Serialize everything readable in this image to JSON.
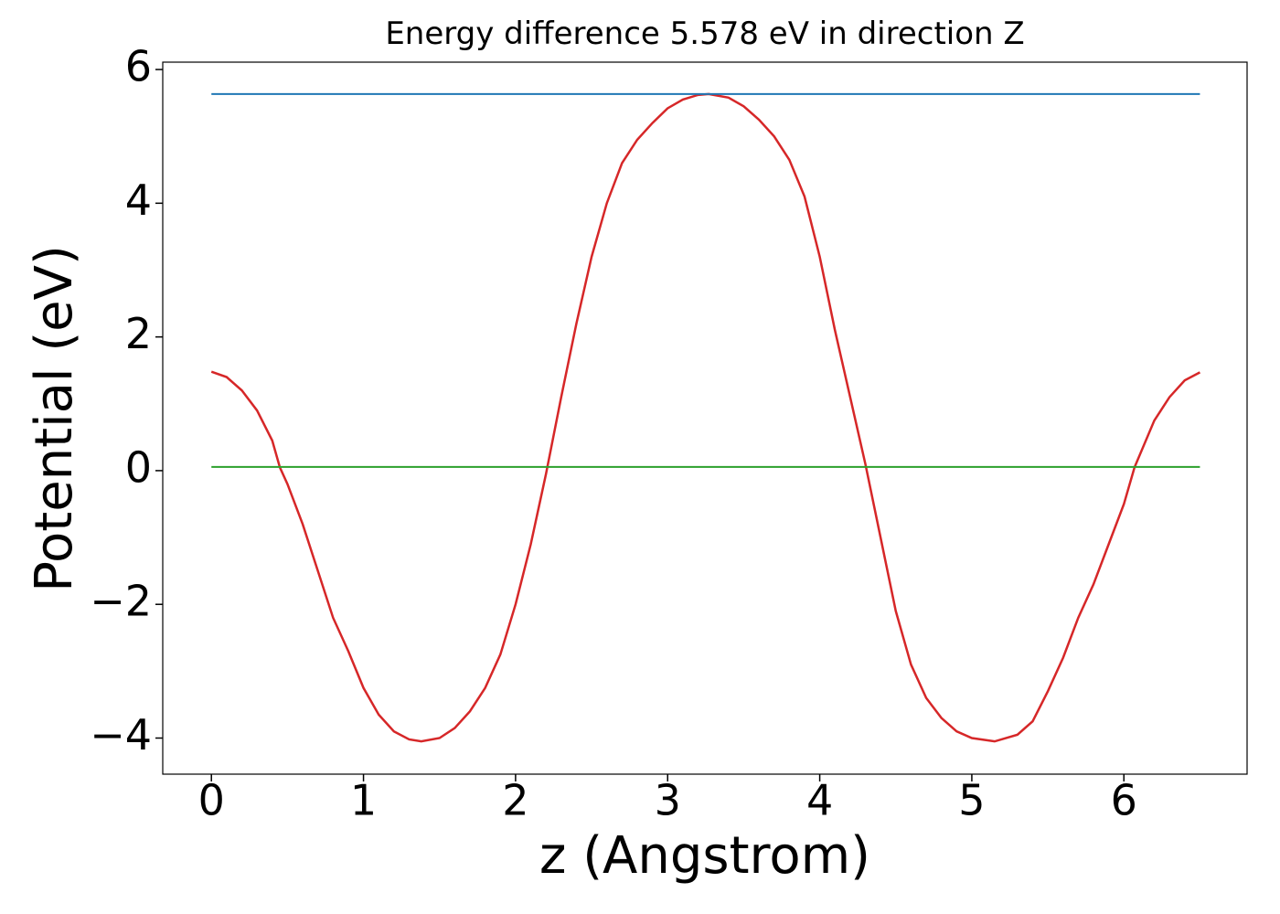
{
  "chart_data": {
    "type": "line",
    "title": "Energy difference 5.578 eV in direction Z",
    "x_label": "z (Angstrom)",
    "y_label": "Potential (eV)",
    "series": [
      {
        "color": "#d62728",
        "x": [
          0,
          0.1,
          0.2,
          0.3,
          0.4,
          0.45,
          0.5,
          0.6,
          0.7,
          0.8,
          0.9,
          1.0,
          1.1,
          1.2,
          1.3,
          1.38,
          1.5,
          1.6,
          1.7,
          1.8,
          1.9,
          2.0,
          2.1,
          2.2,
          2.3,
          2.4,
          2.5,
          2.6,
          2.7,
          2.8,
          2.9,
          3.0,
          3.1,
          3.2,
          3.27,
          3.4,
          3.5,
          3.6,
          3.7,
          3.8,
          3.9,
          4.0,
          4.1,
          4.2,
          4.3,
          4.4,
          4.5,
          4.6,
          4.7,
          4.8,
          4.9,
          5.0,
          5.15,
          5.3,
          5.4,
          5.5,
          5.6,
          5.7,
          5.8,
          5.9,
          6.0,
          6.07,
          6.2,
          6.3,
          6.4,
          6.5
        ],
        "values": [
          1.48,
          1.4,
          1.2,
          0.9,
          0.45,
          0.05,
          -0.2,
          -0.8,
          -1.5,
          -2.2,
          -2.7,
          -3.25,
          -3.65,
          -3.9,
          -4.02,
          -4.05,
          -4.0,
          -3.85,
          -3.6,
          -3.25,
          -2.75,
          -2.0,
          -1.1,
          -0.05,
          1.1,
          2.2,
          3.2,
          4.0,
          4.6,
          4.95,
          5.2,
          5.42,
          5.55,
          5.62,
          5.633,
          5.58,
          5.45,
          5.25,
          5.0,
          4.65,
          4.1,
          3.2,
          2.1,
          1.1,
          0.1,
          -1.0,
          -2.1,
          -2.9,
          -3.4,
          -3.7,
          -3.9,
          -4.0,
          -4.05,
          -3.95,
          -3.75,
          -3.3,
          -2.8,
          -2.2,
          -1.7,
          -1.1,
          -0.5,
          0.05,
          0.75,
          1.1,
          1.35,
          1.47
        ]
      },
      {
        "color": "#1f77b4",
        "x": [
          0,
          6.5
        ],
        "values": [
          5.633,
          5.633
        ]
      },
      {
        "color": "#2ca02c",
        "x": [
          0,
          6.5
        ],
        "values": [
          0.055,
          0.055
        ]
      }
    ],
    "xlim": [
      -0.32,
      6.81
    ],
    "xticks": [
      0,
      1,
      2,
      3,
      4,
      5,
      6
    ],
    "ylim": [
      -4.54,
      6.11
    ],
    "yticks": [
      {
        "value": -4,
        "label": "−4"
      },
      {
        "value": -2,
        "label": "−2"
      },
      0,
      2,
      4,
      6
    ]
  }
}
